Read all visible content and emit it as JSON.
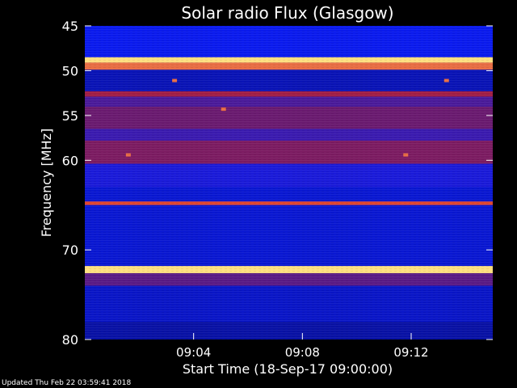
{
  "chart_data": {
    "type": "heatmap",
    "title": "Solar radio Flux (Glasgow)",
    "xlabel": "Start Time (18-Sep-17 09:00:00)",
    "ylabel": "Frequency [MHz]",
    "x_unit": "minutes after 09:00:00",
    "xlim": [
      0,
      15
    ],
    "ylim": [
      45,
      80
    ],
    "y_inverted": true,
    "x_ticks": [
      {
        "value": 4,
        "label": "09:04"
      },
      {
        "value": 8,
        "label": "09:08"
      },
      {
        "value": 12,
        "label": "09:12"
      }
    ],
    "y_ticks": [
      {
        "value": 45,
        "label": "45"
      },
      {
        "value": 50,
        "label": "50"
      },
      {
        "value": 55,
        "label": "55"
      },
      {
        "value": 60,
        "label": "60"
      },
      {
        "value": 70,
        "label": "70"
      },
      {
        "value": 80,
        "label": "80"
      }
    ],
    "colors": {
      "background": "#0a1aee",
      "low": "#08109a",
      "mid": "#6a1a70",
      "high": "#d8201a",
      "peak": "#ffe080"
    },
    "bands": [
      {
        "from": 45.0,
        "to": 48.5,
        "level": 0.15
      },
      {
        "from": 48.5,
        "to": 49.1,
        "level": 1.0
      },
      {
        "from": 49.1,
        "to": 49.9,
        "level": 0.85
      },
      {
        "from": 49.9,
        "to": 52.3,
        "level": 0.05
      },
      {
        "from": 52.3,
        "to": 52.9,
        "level": 0.6
      },
      {
        "from": 52.9,
        "to": 54.0,
        "level": 0.35
      },
      {
        "from": 54.0,
        "to": 56.5,
        "level": 0.45
      },
      {
        "from": 56.5,
        "to": 57.8,
        "level": 0.3
      },
      {
        "from": 57.8,
        "to": 60.4,
        "level": 0.5
      },
      {
        "from": 60.4,
        "to": 63.0,
        "level": 0.2
      },
      {
        "from": 63.0,
        "to": 64.6,
        "level": 0.1
      },
      {
        "from": 64.6,
        "to": 65.0,
        "level": 0.8
      },
      {
        "from": 65.0,
        "to": 71.8,
        "level": 0.1
      },
      {
        "from": 71.8,
        "to": 72.6,
        "level": 1.0
      },
      {
        "from": 72.6,
        "to": 74.0,
        "level": 0.4
      },
      {
        "from": 74.0,
        "to": 78.0,
        "level": 0.08
      },
      {
        "from": 78.0,
        "to": 80.0,
        "level": 0.02
      }
    ],
    "spots": [
      {
        "t": 1.6,
        "f": 59.4
      },
      {
        "t": 3.3,
        "f": 51.1
      },
      {
        "t": 5.1,
        "f": 54.3
      },
      {
        "t": 11.8,
        "f": 59.4
      },
      {
        "t": 13.3,
        "f": 51.1
      }
    ]
  },
  "footer": "Updated Thu Feb 22 03:59:41 2018"
}
